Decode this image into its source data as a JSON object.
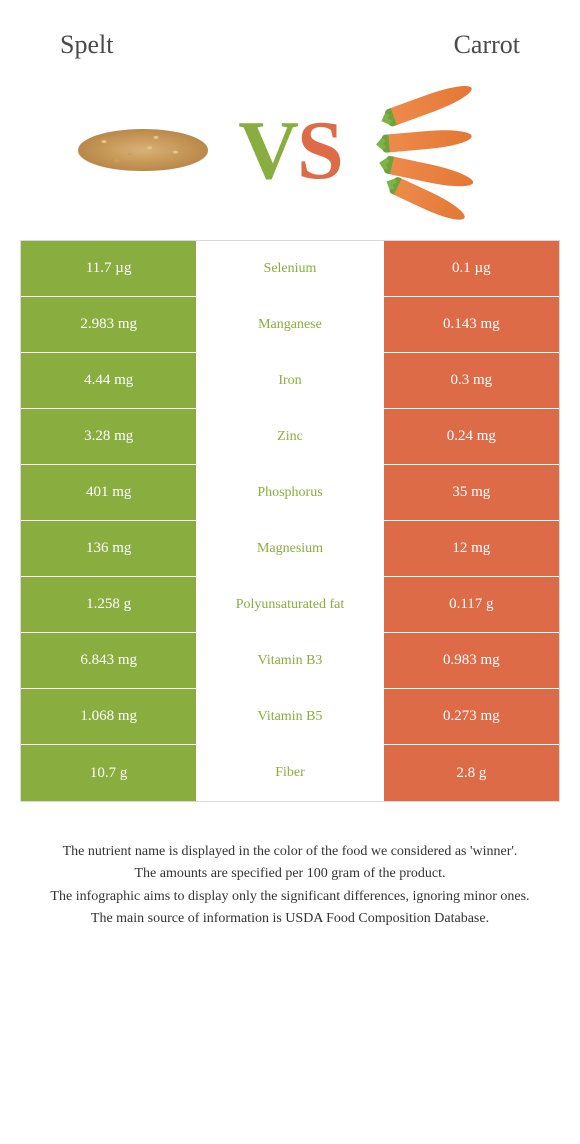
{
  "header": {
    "left_title": "Spelt",
    "right_title": "Carrot"
  },
  "vs": {
    "v": "V",
    "s": "S"
  },
  "colors": {
    "left": "#8aad3f",
    "right": "#dd6b47",
    "mid_bg": "#ffffff",
    "row_border": "#ffffff",
    "text_on_color": "#ffffff"
  },
  "table": {
    "type": "comparison-table",
    "rows": [
      {
        "left": "11.7 µg",
        "label": "Selenium",
        "right": "0.1 µg",
        "winner": "left"
      },
      {
        "left": "2.983 mg",
        "label": "Manganese",
        "right": "0.143 mg",
        "winner": "left"
      },
      {
        "left": "4.44 mg",
        "label": "Iron",
        "right": "0.3 mg",
        "winner": "left"
      },
      {
        "left": "3.28 mg",
        "label": "Zinc",
        "right": "0.24 mg",
        "winner": "left"
      },
      {
        "left": "401 mg",
        "label": "Phosphorus",
        "right": "35 mg",
        "winner": "left"
      },
      {
        "left": "136 mg",
        "label": "Magnesium",
        "right": "12 mg",
        "winner": "left"
      },
      {
        "left": "1.258 g",
        "label": "Polyunsaturated fat",
        "right": "0.117 g",
        "winner": "left"
      },
      {
        "left": "6.843 mg",
        "label": "Vitamin B3",
        "right": "0.983 mg",
        "winner": "left"
      },
      {
        "left": "1.068 mg",
        "label": "Vitamin B5",
        "right": "0.273 mg",
        "winner": "left"
      },
      {
        "left": "10.7 g",
        "label": "Fiber",
        "right": "2.8 g",
        "winner": "left"
      }
    ]
  },
  "footnotes": [
    "The nutrient name is displayed in the color of the food we considered as 'winner'.",
    "The amounts are specified per 100 gram of the product.",
    "The infographic aims to display only the significant differences, ignoring minor ones.",
    "The main source of information is USDA Food Composition Database."
  ]
}
